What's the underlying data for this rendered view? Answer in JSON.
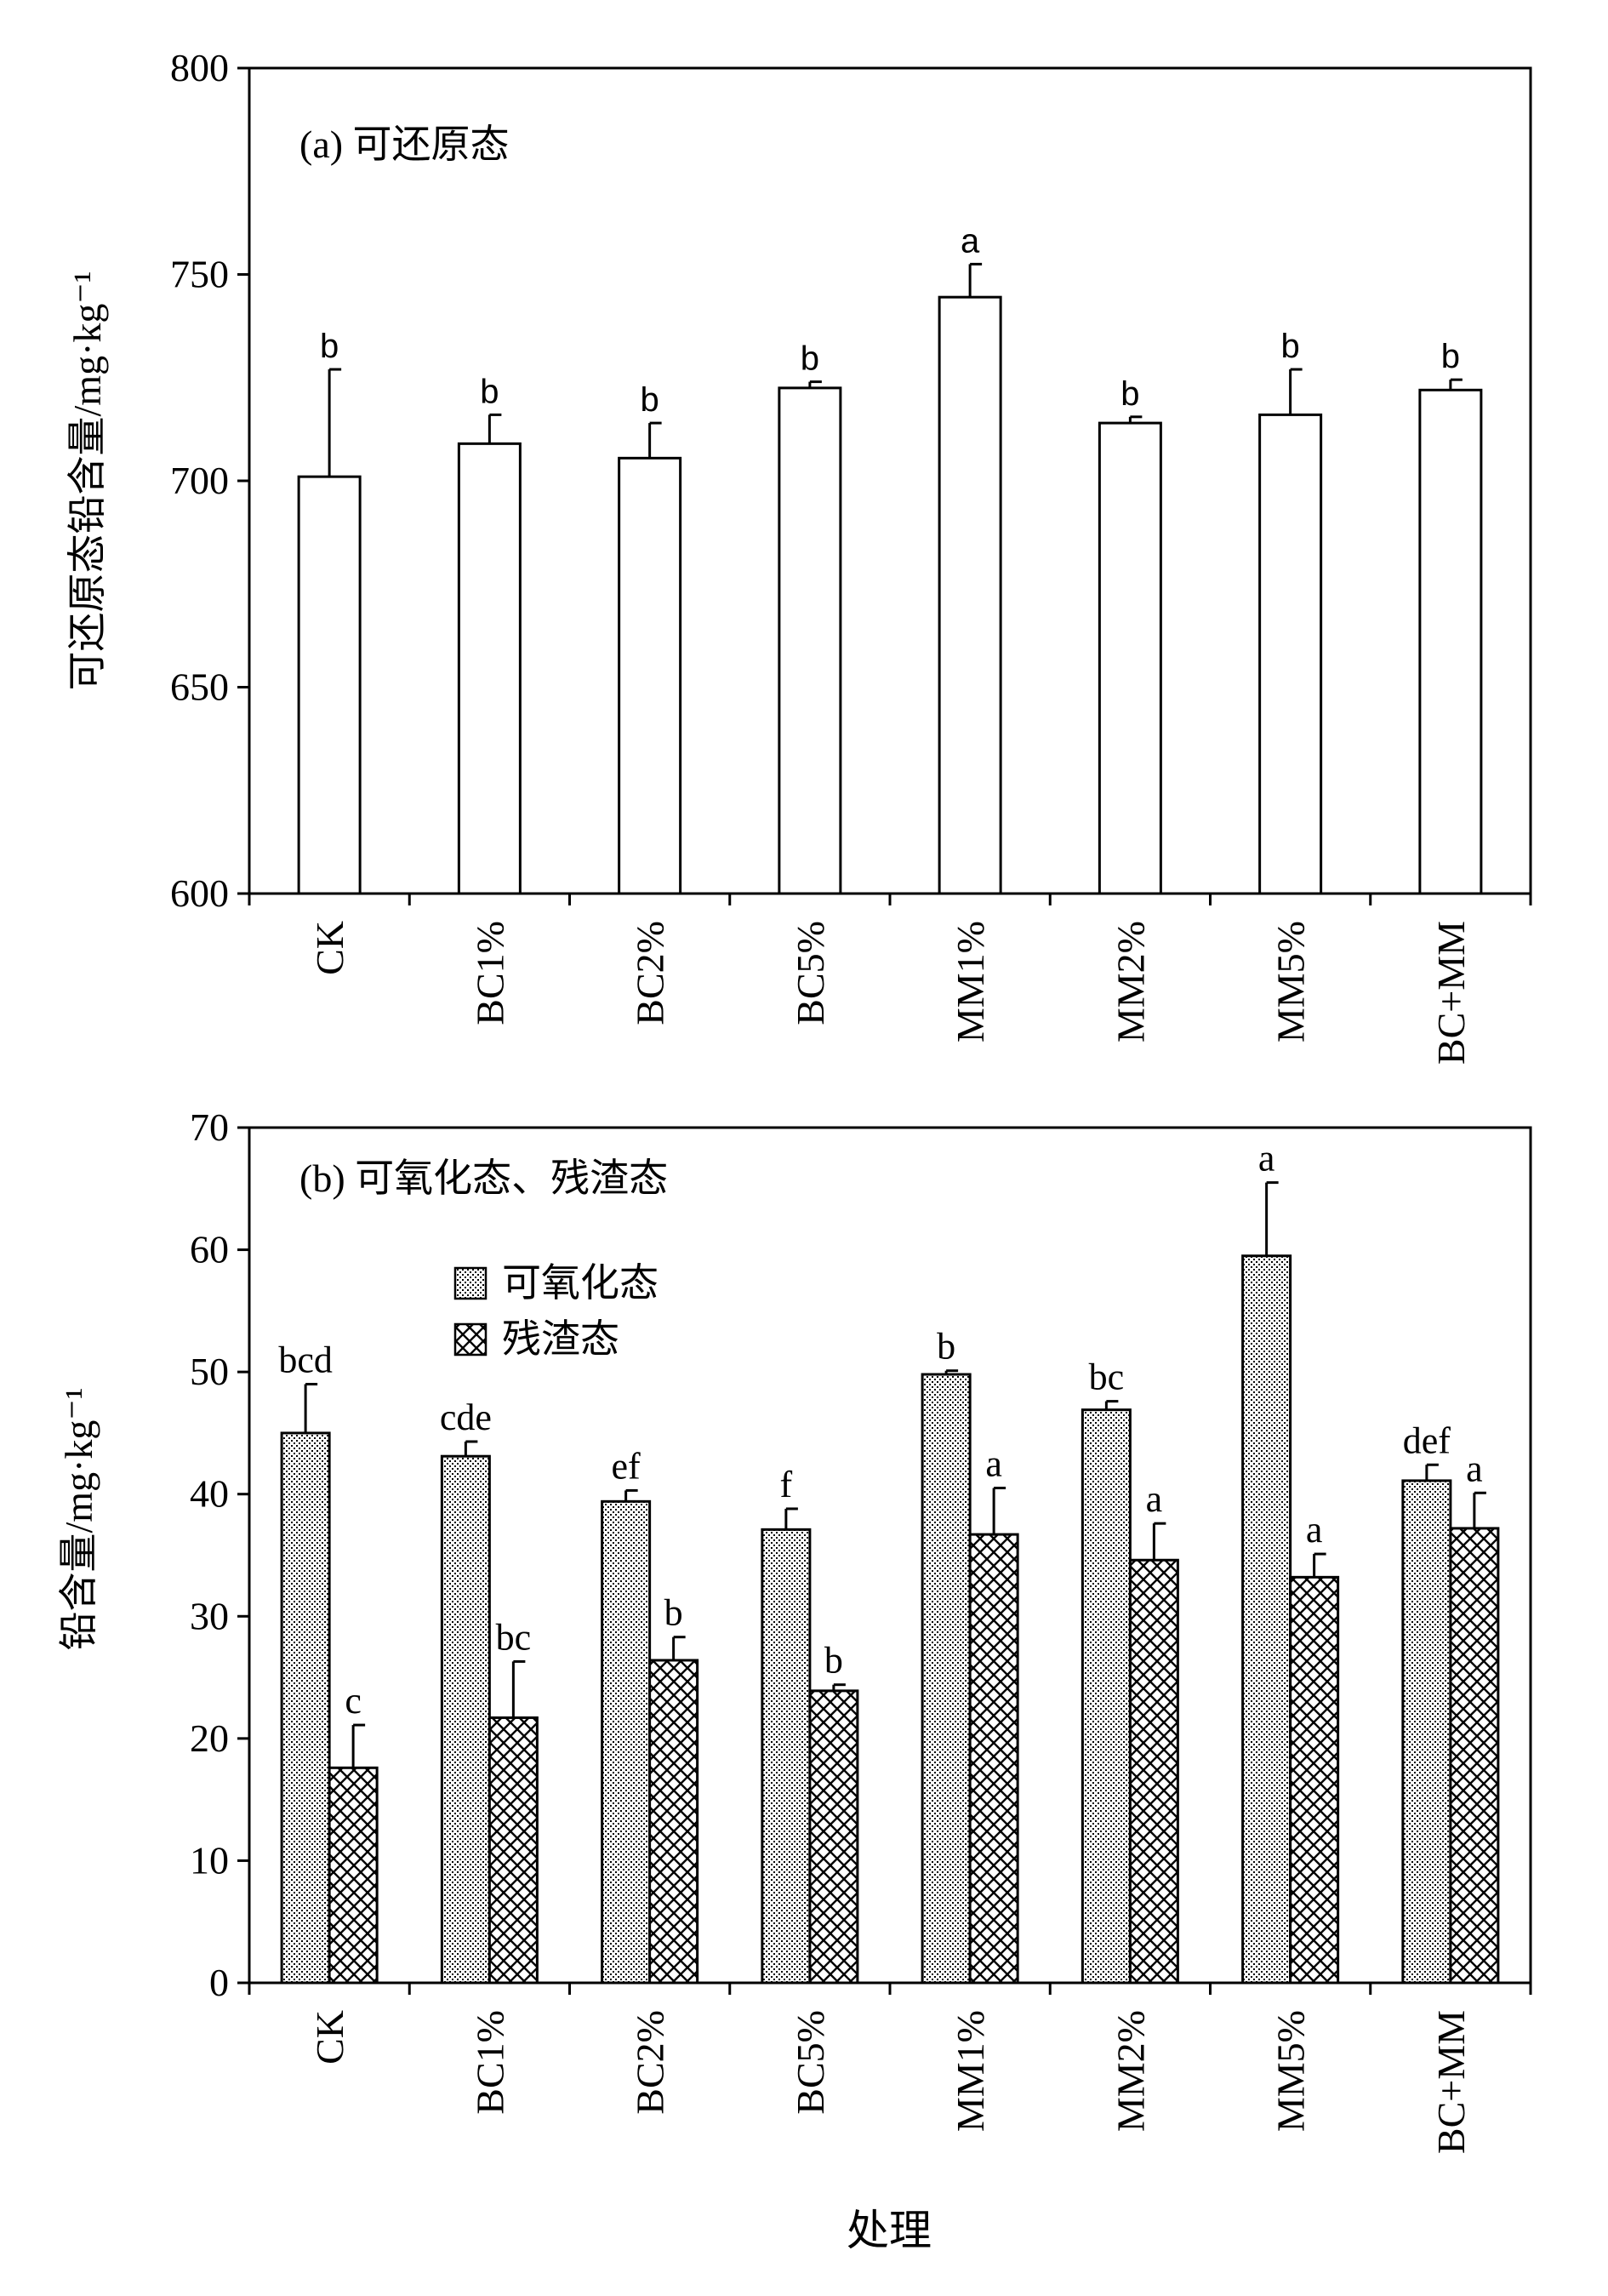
{
  "chart_data": [
    {
      "type": "bar",
      "panel_label": "(a) 可还原态",
      "ylabel": "可还原态铅含量/mg·kg⁻¹",
      "xlabel": "",
      "ylim": [
        600,
        800
      ],
      "yticks": [
        600,
        650,
        700,
        750,
        800
      ],
      "categories": [
        "CK",
        "BC1%",
        "BC2%",
        "BC5%",
        "MM1%",
        "MM2%",
        "MM5%",
        "BC+MM"
      ],
      "series": [
        {
          "values": [
            701,
            709,
            705.5,
            722.5,
            744.5,
            714,
            716,
            722
          ],
          "errors": [
            26,
            7,
            8.5,
            1.5,
            8,
            1.5,
            11,
            2.5
          ],
          "letters": [
            "b",
            "b",
            "b",
            "b",
            "a",
            "b",
            "b",
            "b"
          ],
          "fill": "white"
        }
      ],
      "grid": false
    },
    {
      "type": "bar",
      "panel_label": "(b) 可氧化态、残渣态",
      "ylabel": "铅含量/mg·kg⁻¹",
      "xlabel": "处理",
      "ylim": [
        0,
        70
      ],
      "yticks": [
        0,
        10,
        20,
        30,
        40,
        50,
        60,
        70
      ],
      "categories": [
        "CK",
        "BC1%",
        "BC2%",
        "BC5%",
        "MM1%",
        "MM2%",
        "MM5%",
        "BC+MM"
      ],
      "legend_position": "upper-left",
      "series": [
        {
          "name": "可氧化态",
          "values": [
            45,
            43.1,
            39.4,
            37.1,
            49.8,
            46.9,
            59.5,
            41.1
          ],
          "errors": [
            4,
            1.2,
            0.9,
            1.7,
            0.3,
            0.7,
            6,
            1.3
          ],
          "letters": [
            "bcd",
            "cde",
            "ef",
            "f",
            "b",
            "bc",
            "a",
            "def"
          ],
          "fill": "dotted"
        },
        {
          "name": "残渣态",
          "values": [
            17.6,
            21.7,
            26.4,
            23.9,
            36.7,
            34.6,
            33.2,
            37.2
          ],
          "errors": [
            3.5,
            4.6,
            1.9,
            0.5,
            3.8,
            3,
            1.9,
            2.9
          ],
          "letters": [
            "c",
            "bc",
            "b",
            "b",
            "a",
            "a",
            "a",
            "a"
          ],
          "fill": "crosshatch"
        }
      ],
      "grid": false
    }
  ]
}
